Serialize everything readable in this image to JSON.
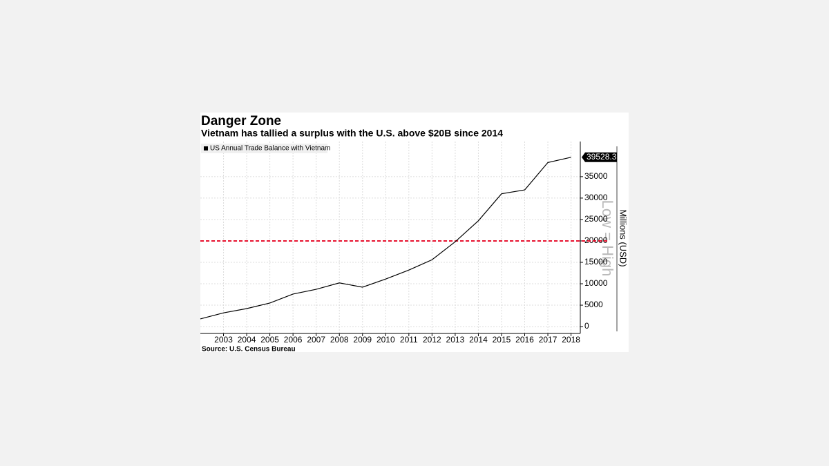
{
  "chart_data": {
    "type": "line",
    "title": "Danger Zone",
    "subtitle": "Vietnam has tallied a surplus with the U.S. above $20B since 2014",
    "source": "Source: U.S. Census Bureau",
    "y_axis_label": "Millions (USD)",
    "watermark": "Low = High",
    "x": [
      2002,
      2003,
      2004,
      2005,
      2006,
      2007,
      2008,
      2009,
      2010,
      2011,
      2012,
      2013,
      2014,
      2015,
      2016,
      2017,
      2018
    ],
    "series": [
      {
        "name": "US Annual Trade Balance with Vietnam",
        "color": "#000000",
        "values": [
          1800,
          3200,
          4200,
          5500,
          7600,
          8700,
          10200,
          9200,
          11100,
          13200,
          15600,
          19800,
          24700,
          31000,
          31900,
          38300,
          39528.3
        ]
      }
    ],
    "reference_line": {
      "value": 20000,
      "color": "#e8112d"
    },
    "xlim": [
      2002,
      2018.4
    ],
    "xticks": [
      2003,
      2004,
      2005,
      2006,
      2007,
      2008,
      2009,
      2010,
      2011,
      2012,
      2013,
      2014,
      2015,
      2016,
      2017,
      2018
    ],
    "ylim": [
      -1600,
      43200
    ],
    "yticks": [
      0,
      5000,
      10000,
      15000,
      20000,
      25000,
      30000,
      35000
    ],
    "grid": true
  }
}
